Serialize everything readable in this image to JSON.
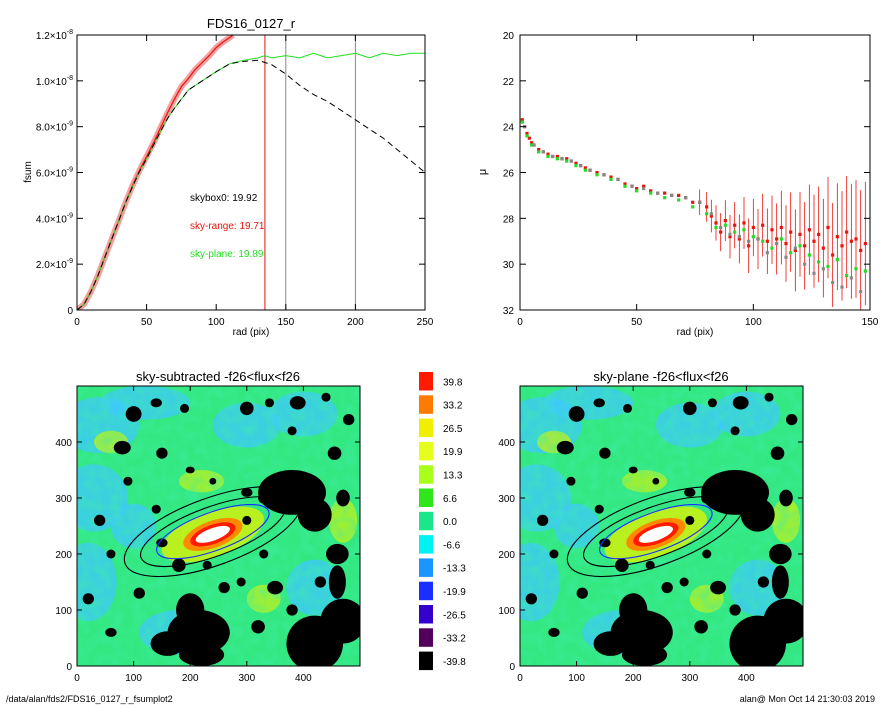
{
  "footer": {
    "left": "/data/alan/fds2/FDS16_0127_r_fsumplot2",
    "right": "alan@  Mon Oct 14 21:30:03 2019"
  },
  "colors": {
    "red": "#e8140c",
    "green": "#22dd22",
    "black": "#000000",
    "gray": "#888888"
  },
  "chart_data": [
    {
      "type": "line",
      "title": "FDS16_0127_r",
      "xlabel": "rad (pix)",
      "ylabel": "fsum",
      "xlim": [
        0,
        250
      ],
      "ylim": [
        0,
        1.2e-08
      ],
      "xticks": [
        "0",
        "50",
        "100",
        "150",
        "200",
        "250"
      ],
      "yticks": [
        {
          "base": "0",
          "exp": ""
        },
        {
          "base": "2.0×10",
          "exp": "-9"
        },
        {
          "base": "4.0×10",
          "exp": "-9"
        },
        {
          "base": "6.0×10",
          "exp": "-9"
        },
        {
          "base": "8.0×10",
          "exp": "-9"
        },
        {
          "base": "1.0×10",
          "exp": "-8"
        },
        {
          "base": "1.2×10",
          "exp": "-8"
        }
      ],
      "ytick_values": [
        0,
        2e-09,
        4e-09,
        6e-09,
        8e-09,
        1e-08,
        1.2e-08
      ],
      "vlines": [
        {
          "x": 135,
          "color": "red"
        },
        {
          "x": 150,
          "color": "gray"
        },
        {
          "x": 200,
          "color": "gray"
        }
      ],
      "annotations": [
        {
          "text": "skybox0: 19.92",
          "color": "black"
        },
        {
          "text": "sky-range: 19.71",
          "color": "red"
        },
        {
          "text": "sky-plane: 19.89",
          "color": "green"
        }
      ],
      "series": [
        {
          "color": "red",
          "style": "solid-band",
          "x": [
            0,
            5,
            10,
            15,
            20,
            25,
            30,
            35,
            40,
            45,
            50,
            55,
            60,
            65,
            70,
            75,
            80,
            85,
            90,
            95,
            100,
            105,
            110,
            112
          ],
          "y": [
            0,
            2.5e-10,
            8e-10,
            1.5e-09,
            2.3e-09,
            3.1e-09,
            3.9e-09,
            4.7e-09,
            5.45e-09,
            6.1e-09,
            6.7e-09,
            7.3e-09,
            7.95e-09,
            8.6e-09,
            9.2e-09,
            9.75e-09,
            1.01e-08,
            1.05e-08,
            1.08e-08,
            1.11e-08,
            1.145e-08,
            1.17e-08,
            1.19e-08,
            1.2e-08
          ]
        },
        {
          "color": "green",
          "style": "solid",
          "x": [
            0,
            5,
            10,
            15,
            20,
            25,
            30,
            35,
            40,
            45,
            50,
            55,
            60,
            65,
            70,
            75,
            80,
            90,
            100,
            110,
            120,
            130,
            135,
            140,
            150,
            160,
            170,
            180,
            190,
            200,
            210,
            220,
            230,
            240,
            250
          ],
          "y": [
            0,
            2.5e-10,
            8e-10,
            1.5e-09,
            2.3e-09,
            3.1e-09,
            3.9e-09,
            4.7e-09,
            5.4e-09,
            6.05e-09,
            6.6e-09,
            7.2e-09,
            7.8e-09,
            8.35e-09,
            8.8e-09,
            9.2e-09,
            9.6e-09,
            1e-08,
            1.04e-08,
            1.075e-08,
            1.09e-08,
            1.1e-08,
            1.11e-08,
            1.1e-08,
            1.11e-08,
            1.1e-08,
            1.12e-08,
            1.1e-08,
            1.11e-08,
            1.12e-08,
            1.1e-08,
            1.12e-08,
            1.11e-08,
            1.12e-08,
            1.12e-08
          ]
        },
        {
          "color": "black",
          "style": "dashed",
          "x": [
            0,
            5,
            10,
            15,
            20,
            25,
            30,
            35,
            40,
            45,
            50,
            55,
            60,
            65,
            70,
            75,
            80,
            90,
            100,
            110,
            120,
            130,
            135,
            140,
            150,
            160,
            170,
            180,
            190,
            200,
            210,
            220,
            230,
            240,
            250
          ],
          "y": [
            0,
            2.5e-10,
            8e-10,
            1.5e-09,
            2.3e-09,
            3.1e-09,
            3.9e-09,
            4.7e-09,
            5.4e-09,
            6.05e-09,
            6.6e-09,
            7.2e-09,
            7.8e-09,
            8.35e-09,
            8.8e-09,
            9.2e-09,
            9.6e-09,
            1e-08,
            1.04e-08,
            1.075e-08,
            1.085e-08,
            1.09e-08,
            1.08e-08,
            1.07e-08,
            1.03e-08,
            9.8e-09,
            9.4e-09,
            9.1e-09,
            8.7e-09,
            8.3e-09,
            7.9e-09,
            7.5e-09,
            7e-09,
            6.5e-09,
            6e-09
          ]
        }
      ]
    },
    {
      "type": "scatter",
      "title": "",
      "xlabel": "rad (pix)",
      "ylabel": "μ",
      "xlim": [
        0,
        150
      ],
      "ylim": [
        32,
        20
      ],
      "xticks": [
        "0",
        "50",
        "100",
        "150"
      ],
      "yticks": [
        "20",
        "22",
        "24",
        "26",
        "28",
        "30",
        "32"
      ],
      "ytick_values": [
        20,
        22,
        24,
        26,
        28,
        30,
        32
      ],
      "series": [
        {
          "color": "red",
          "x": [
            1,
            2,
            3,
            4,
            5,
            6,
            8,
            10,
            12,
            14,
            16,
            18,
            20,
            22,
            24,
            26,
            28,
            30,
            33,
            36,
            39,
            42,
            45,
            48,
            50,
            53,
            56,
            59,
            62,
            65,
            68,
            71,
            74,
            77,
            80,
            82,
            84,
            86,
            88,
            90,
            92,
            94,
            96,
            98,
            100,
            102,
            104,
            106,
            108,
            110,
            112,
            114,
            116,
            118,
            120,
            122,
            124,
            126,
            128,
            130,
            132,
            134,
            136,
            138,
            140,
            142,
            144,
            146,
            148
          ],
          "y": [
            23.7,
            24.0,
            24.3,
            24.5,
            24.7,
            24.8,
            25.0,
            25.1,
            25.2,
            25.3,
            25.3,
            25.4,
            25.4,
            25.5,
            25.6,
            25.7,
            25.8,
            25.9,
            26.0,
            26.1,
            26.2,
            26.3,
            26.5,
            26.6,
            26.7,
            26.6,
            26.8,
            26.9,
            26.9,
            27.0,
            27.0,
            27.1,
            27.3,
            27.3,
            27.5,
            27.9,
            28.2,
            28.6,
            28.1,
            28.8,
            28.3,
            28.9,
            28.2,
            29.2,
            28.4,
            28.9,
            28.3,
            29.0,
            28.5,
            28.9,
            28.4,
            29.1,
            28.6,
            29.4,
            28.7,
            29.2,
            28.5,
            29.0,
            28.7,
            29.3,
            28.4,
            29.6,
            28.8,
            29.2,
            28.6,
            29.0,
            28.9,
            29.4,
            29.1
          ]
        },
        {
          "color": "green",
          "x": [
            1,
            3,
            5,
            8,
            12,
            16,
            20,
            24,
            28,
            33,
            39,
            45,
            50,
            56,
            62,
            68,
            74,
            80,
            84,
            88,
            92,
            96,
            100,
            104,
            108,
            112,
            116,
            120,
            124,
            128,
            132,
            136,
            140,
            144,
            148
          ],
          "y": [
            23.8,
            24.4,
            24.8,
            25.1,
            25.3,
            25.4,
            25.5,
            25.7,
            25.9,
            26.1,
            26.3,
            26.6,
            26.8,
            26.9,
            27.1,
            27.2,
            27.5,
            27.8,
            28.4,
            28.3,
            28.6,
            28.5,
            28.8,
            29.0,
            29.3,
            28.9,
            29.5,
            29.2,
            29.6,
            29.9,
            30.1,
            29.8,
            30.5,
            30.2,
            30.3
          ]
        },
        {
          "color": "gray",
          "x": [
            2,
            6,
            10,
            14,
            18,
            22,
            26,
            30,
            36,
            42,
            48,
            53,
            59,
            65,
            71,
            77,
            82,
            86,
            90,
            94,
            98,
            102,
            106,
            110,
            114,
            118,
            122,
            126,
            130,
            134,
            138,
            142,
            146
          ],
          "y": [
            24.0,
            24.8,
            25.1,
            25.3,
            25.4,
            25.5,
            25.7,
            25.9,
            26.1,
            26.3,
            26.6,
            26.7,
            26.9,
            27.0,
            27.1,
            27.3,
            27.8,
            28.4,
            28.7,
            28.8,
            29.0,
            28.9,
            29.5,
            29.1,
            29.7,
            29.3,
            30.0,
            30.4,
            30.2,
            30.8,
            31.0,
            30.6,
            31.2
          ]
        }
      ]
    },
    {
      "type": "heatmap",
      "title": "sky-subtracted -f26<flux<f26",
      "xlim": [
        0,
        500
      ],
      "ylim": [
        0,
        500
      ],
      "xticks": [
        "0",
        "100",
        "200",
        "300",
        "400"
      ],
      "yticks": [
        "0",
        "100",
        "200",
        "300",
        "400"
      ],
      "tick_values": [
        0,
        100,
        200,
        300,
        400
      ]
    },
    {
      "type": "heatmap",
      "title": "sky-plane -f26<flux<f26",
      "xlim": [
        0,
        500
      ],
      "ylim": [
        0,
        500
      ],
      "xticks": [
        "0",
        "100",
        "200",
        "300",
        "400"
      ],
      "yticks": [
        "0",
        "100",
        "200",
        "300",
        "400"
      ],
      "tick_values": [
        0,
        100,
        200,
        300,
        400
      ]
    },
    {
      "type": "colorbar",
      "labels": [
        "39.8",
        "33.2",
        "26.5",
        "19.9",
        "13.3",
        "6.6",
        "0.0",
        "-6.6",
        "-13.3",
        "-19.9",
        "-26.5",
        "-33.2",
        "-39.8"
      ],
      "colors": [
        "#ff1a00",
        "#ff7a00",
        "#f2ee00",
        "#e6ff1a",
        "#a8ff1a",
        "#2ee61a",
        "#1ae68c",
        "#00f2f2",
        "#1a96ff",
        "#1a2eff",
        "#3300cc",
        "#52005c",
        "#000000"
      ]
    }
  ]
}
